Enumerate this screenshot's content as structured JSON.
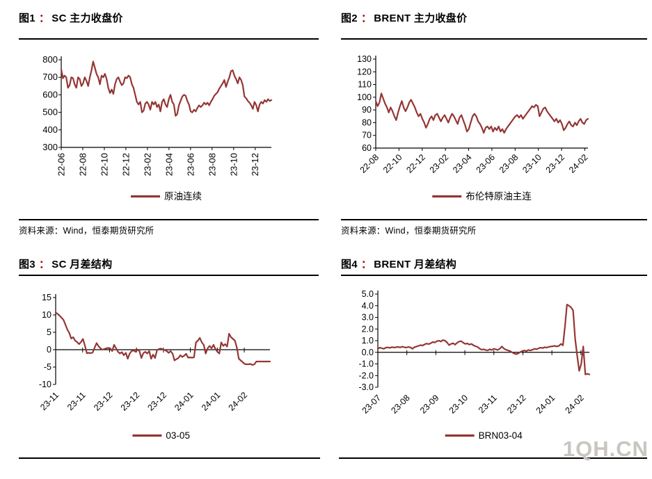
{
  "watermark": "1QH.CN",
  "line_color": "#943634",
  "colon_color": "#b00000",
  "figures": [
    {
      "label": "图1",
      "colon": "：",
      "title": "SC 主力收盘价",
      "source": "资料来源：Wind，恒泰期货研究所"
    },
    {
      "label": "图2",
      "colon": "：",
      "title": "BRENT 主力收盘价",
      "source": "资料来源：Wind，恒泰期货研究所"
    },
    {
      "label": "图3",
      "colon": "：",
      "title": "SC 月差结构",
      "source": ""
    },
    {
      "label": "图4",
      "colon": "：",
      "title": "BRENT 月差结构",
      "source": ""
    }
  ],
  "chart_data": [
    {
      "type": "line",
      "title": "SC 主力收盘价",
      "legend_position": "bottom",
      "grid": false,
      "xlabel": "",
      "ylabel": "",
      "ylim": [
        300,
        800
      ],
      "yticks": [
        "800",
        "700",
        "600",
        "500",
        "400",
        "300"
      ],
      "categories": [
        "22-06",
        "22-08",
        "22-10",
        "22-12",
        "23-02",
        "23-04",
        "23-06",
        "23-08",
        "23-10",
        "23-12"
      ],
      "xtick_rotation": "vertical",
      "series": [
        {
          "name": "原油连续",
          "values": [
            745,
            695,
            710,
            700,
            640,
            655,
            700,
            695,
            660,
            640,
            700,
            690,
            650,
            665,
            700,
            680,
            650,
            700,
            740,
            790,
            755,
            720,
            700,
            660,
            710,
            700,
            720,
            690,
            640,
            610,
            630,
            605,
            660,
            690,
            700,
            675,
            655,
            665,
            700,
            695,
            710,
            700,
            660,
            640,
            600,
            560,
            545,
            560,
            500,
            510,
            550,
            560,
            545,
            515,
            560,
            545,
            560,
            530,
            545,
            505,
            560,
            575,
            545,
            530,
            575,
            600,
            560,
            545,
            480,
            490,
            540,
            565,
            590,
            600,
            595,
            565,
            545,
            505,
            500,
            515,
            505,
            525,
            540,
            530,
            540,
            555,
            545,
            555,
            540,
            560,
            575,
            595,
            605,
            615,
            635,
            650,
            665,
            685,
            645,
            675,
            700,
            735,
            740,
            710,
            690,
            665,
            700,
            685,
            655,
            590,
            580,
            565,
            555,
            540,
            520,
            560,
            540,
            505,
            545,
            560,
            550,
            570,
            560,
            575,
            565,
            570
          ]
        }
      ]
    },
    {
      "type": "line",
      "title": "BRENT 主力收盘价",
      "legend_position": "bottom",
      "grid": false,
      "xlabel": "",
      "ylabel": "",
      "ylim": [
        60,
        130
      ],
      "yticks": [
        "130",
        "120",
        "110",
        "100",
        "90",
        "80",
        "70",
        "60"
      ],
      "categories": [
        "22-08",
        "22-10",
        "22-12",
        "23-02",
        "23-04",
        "23-06",
        "23-08",
        "23-10",
        "23-12",
        "24-02"
      ],
      "xtick_rotation": "diagonal",
      "series": [
        {
          "name": "布伦特原油主连",
          "values": [
            97,
            93,
            96,
            103,
            99,
            95,
            92,
            88,
            92,
            89,
            85,
            82,
            88,
            93,
            97,
            92,
            89,
            92,
            96,
            98,
            95,
            92,
            88,
            85,
            87,
            83,
            80,
            76,
            79,
            83,
            85,
            82,
            86,
            87,
            84,
            81,
            84,
            86,
            83,
            80,
            84,
            87,
            85,
            82,
            79,
            84,
            86,
            82,
            78,
            73,
            75,
            80,
            85,
            87,
            85,
            81,
            79,
            76,
            72,
            76,
            77,
            75,
            77,
            73,
            76,
            74,
            77,
            73,
            75,
            72,
            75,
            77,
            79,
            81,
            83,
            85,
            86,
            84,
            86,
            83,
            85,
            87,
            89,
            91,
            93,
            92,
            94,
            93,
            85,
            88,
            91,
            92,
            89,
            87,
            85,
            83,
            81,
            83,
            80,
            82,
            79,
            74,
            76,
            79,
            81,
            78,
            77,
            80,
            78,
            81,
            83,
            80,
            79,
            82,
            83
          ]
        }
      ]
    },
    {
      "type": "line",
      "title": "SC 月差结构",
      "legend_position": "bottom",
      "grid": false,
      "xlabel": "",
      "ylabel": "",
      "ylim": [
        -10,
        15
      ],
      "yticks": [
        "15",
        "10",
        "5",
        "0",
        "-5",
        "-10"
      ],
      "categories": [
        "23-11",
        "23-11",
        "23-12",
        "23-12",
        "23-12",
        "24-01",
        "24-01",
        "24-02"
      ],
      "xtick_rotation": "diagonal",
      "axis_at_zero": true,
      "series": [
        {
          "name": "03-05",
          "values": [
            10.7,
            10.3,
            9.8,
            9.2,
            8.6,
            7.2,
            5.8,
            4.8,
            3.2,
            3.6,
            2.6,
            2.2,
            1.6,
            2.2,
            3.1,
            1.2,
            -1.0,
            -0.9,
            -1.0,
            -0.8,
            0.6,
            1.9,
            1.0,
            0.4,
            0.0,
            0.2,
            0.4,
            0.5,
            0.4,
            -0.4,
            1.4,
            0.4,
            -0.6,
            -1.1,
            -0.7,
            -1.6,
            -0.9,
            -2.6,
            -1.1,
            -0.4,
            -0.2,
            -0.6,
            0.0,
            -0.4,
            -2.4,
            -1.0,
            -0.6,
            -1.1,
            -0.4,
            -2.6,
            -1.4,
            -2.4,
            -0.2,
            0.2,
            0.3,
            0.1,
            -0.1,
            -0.4,
            -0.9,
            -0.4,
            -1.1,
            -3.1,
            -2.7,
            -2.4,
            -1.6,
            -2.1,
            -1.7,
            -1.2,
            -2.3,
            -2.2,
            -2.3,
            -2.2,
            2.1,
            2.6,
            3.4,
            2.1,
            1.4,
            -1.1,
            0.4,
            1.1,
            0.4,
            1.4,
            0.2,
            -0.6,
            -1.1,
            2.1,
            1.1,
            1.6,
            0.9,
            4.6,
            3.6,
            3.1,
            2.6,
            0.6,
            -2.6,
            -3.1,
            -3.6,
            -4.1,
            -4.2,
            -4.2,
            -4.1,
            -4.4,
            -4.2,
            -3.4,
            -3.4,
            -3.4,
            -3.4,
            -3.4,
            -3.4,
            -3.4,
            -3.4
          ]
        }
      ]
    },
    {
      "type": "line",
      "title": "BRENT 月差结构",
      "legend_position": "bottom",
      "grid": false,
      "xlabel": "",
      "ylabel": "",
      "ylim": [
        -3,
        5
      ],
      "yticks": [
        "5.0",
        "4.0",
        "3.0",
        "2.0",
        "1.0",
        "0.0",
        "-1.0",
        "-2.0",
        "-3.0"
      ],
      "categories": [
        "23-07",
        "23-08",
        "23-09",
        "23-10",
        "23-11",
        "23-12",
        "24-01",
        "24-02"
      ],
      "xtick_rotation": "diagonal",
      "axis_at_zero": true,
      "series": [
        {
          "name": "BRN03-04",
          "values": [
            0.3,
            0.4,
            0.35,
            0.3,
            0.4,
            0.42,
            0.38,
            0.45,
            0.4,
            0.44,
            0.46,
            0.42,
            0.48,
            0.44,
            0.4,
            0.46,
            0.42,
            0.3,
            0.44,
            0.5,
            0.55,
            0.62,
            0.58,
            0.68,
            0.75,
            0.7,
            0.78,
            0.88,
            0.84,
            0.95,
            1.0,
            0.92,
            1.05,
            1.0,
            0.85,
            0.62,
            0.72,
            0.78,
            0.66,
            0.82,
            0.92,
            0.96,
            0.82,
            0.72,
            0.76,
            0.66,
            0.72,
            0.6,
            0.52,
            0.46,
            0.32,
            0.22,
            0.26,
            0.2,
            0.16,
            0.26,
            0.2,
            0.3,
            0.26,
            0.2,
            0.32,
            0.5,
            0.32,
            0.22,
            0.16,
            0.1,
            0.0,
            -0.1,
            -0.16,
            -0.1,
            0.02,
            0.1,
            0.16,
            0.1,
            0.2,
            0.16,
            0.22,
            0.3,
            0.26,
            0.34,
            0.4,
            0.36,
            0.44,
            0.4,
            0.46,
            0.5,
            0.52,
            0.56,
            0.5,
            0.56,
            0.72,
            0.6,
            2.2,
            4.1,
            4.0,
            3.85,
            3.6,
            1.2,
            -0.3,
            -1.6,
            -1.0,
            0.5,
            -1.9,
            -1.85,
            -1.9
          ]
        }
      ]
    }
  ]
}
